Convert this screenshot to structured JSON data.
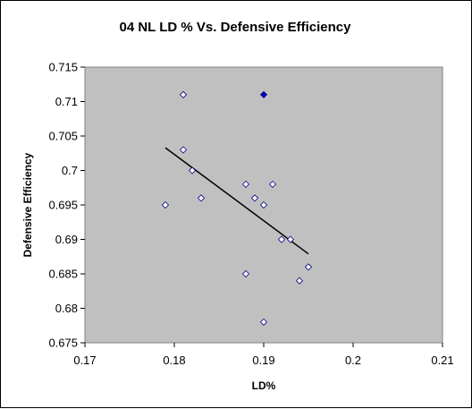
{
  "chart_data": {
    "type": "scatter",
    "title": "04 NL LD % Vs. Defensive Efficiency",
    "xlabel": "LD%",
    "ylabel": "Defensive Efficiency",
    "xlim": [
      0.17,
      0.21
    ],
    "ylim": [
      0.675,
      0.715
    ],
    "x_ticks": [
      0.17,
      0.18,
      0.19,
      0.2,
      0.21
    ],
    "x_tick_labels": [
      "0.17",
      "0.18",
      "0.19",
      "0.2",
      "0.21"
    ],
    "y_ticks": [
      0.675,
      0.68,
      0.685,
      0.69,
      0.695,
      0.7,
      0.705,
      0.71,
      0.715
    ],
    "y_tick_labels": [
      "0.675",
      "0.68",
      "0.685",
      "0.69",
      "0.695",
      "0.7",
      "0.705",
      "0.71",
      "0.715"
    ],
    "grid": false,
    "legend": "none",
    "series": [
      {
        "points": [
          {
            "x": 0.179,
            "y": 0.695
          },
          {
            "x": 0.181,
            "y": 0.711
          },
          {
            "x": 0.181,
            "y": 0.703
          },
          {
            "x": 0.182,
            "y": 0.7
          },
          {
            "x": 0.183,
            "y": 0.696
          },
          {
            "x": 0.188,
            "y": 0.698
          },
          {
            "x": 0.188,
            "y": 0.685
          },
          {
            "x": 0.189,
            "y": 0.696
          },
          {
            "x": 0.19,
            "y": 0.695
          },
          {
            "x": 0.19,
            "y": 0.678
          },
          {
            "x": 0.19,
            "y": 0.711,
            "highlight": true
          },
          {
            "x": 0.191,
            "y": 0.698
          },
          {
            "x": 0.192,
            "y": 0.69
          },
          {
            "x": 0.193,
            "y": 0.69
          },
          {
            "x": 0.194,
            "y": 0.684
          },
          {
            "x": 0.195,
            "y": 0.686
          }
        ]
      }
    ],
    "trendline": {
      "x": [
        0.179,
        0.195
      ],
      "y": [
        0.7033,
        0.6879
      ]
    },
    "colors": {
      "plot_background": "#c0c0c0",
      "marker_fill": "#ffffff",
      "marker_stroke": "#000080",
      "highlight_fill": "#0000cc",
      "trendline": "#000000"
    }
  }
}
